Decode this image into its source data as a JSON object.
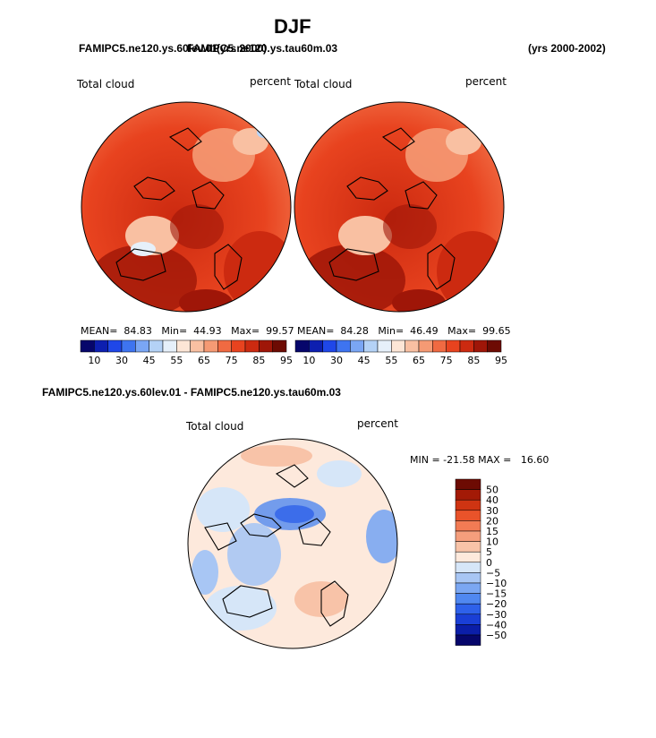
{
  "page_title": "DJF",
  "header": {
    "left_overlap_a": "FAMIPC5.ne120.ys.60lev.01",
    "left_overlap_b": "FAMIPC5.ne120.ys.tau60m.03",
    "years_a": "(yrs 2000)",
    "years_right": "(yrs 2000-2002)"
  },
  "diff_header": "FAMIPC5.ne120.ys.60lev.01 - FAMIPC5.ne120.ys.tau60m.03",
  "colors": {
    "seq": [
      "#06066b",
      "#0d1fb0",
      "#1f47e8",
      "#3e74f0",
      "#7aa6f4",
      "#b4d2f6",
      "#e6f0fa",
      "#fde6d6",
      "#f9c0a2",
      "#f59a74",
      "#f06a42",
      "#e8431f",
      "#cc2a10",
      "#9f1608",
      "#6d0b03"
    ],
    "div": [
      "#06066b",
      "#0b1ea8",
      "#1a3fd6",
      "#2e61ea",
      "#5088f0",
      "#7ba7f2",
      "#a8c6f4",
      "#d6e6f8",
      "#fde9dc",
      "#f8c3a8",
      "#f59e7c",
      "#f27b54",
      "#e9532a",
      "#cf3412",
      "#a31a06",
      "#6d0b03"
    ]
  },
  "chart_data": [
    {
      "type": "heatmap",
      "subtype": "polar-stereographic map",
      "title": "Total cloud",
      "units": "percent",
      "stats": {
        "mean_label": "MEAN=",
        "mean": "84.83",
        "min_label": "Min=",
        "min": "44.93",
        "max_label": "Max=",
        "max": "99.57"
      },
      "colorbar_ticks": [
        "10",
        "30",
        "45",
        "55",
        "65",
        "75",
        "85",
        "95"
      ]
    },
    {
      "type": "heatmap",
      "subtype": "polar-stereographic map",
      "title": "Total cloud",
      "units": "percent",
      "stats": {
        "mean_label": "MEAN=",
        "mean": "84.28",
        "min_label": "Min=",
        "min": "46.49",
        "max_label": "Max=",
        "max": "99.65"
      },
      "colorbar_ticks": [
        "10",
        "30",
        "45",
        "55",
        "65",
        "75",
        "85",
        "95"
      ]
    },
    {
      "type": "heatmap",
      "subtype": "polar-stereographic difference map",
      "title": "Total cloud",
      "units": "percent",
      "stats_text": "MIN = -21.58 MAX =   16.60",
      "colorbar_ticks": [
        "50",
        "40",
        "30",
        "20",
        "15",
        "10",
        "5",
        "0",
        "−5",
        "−10",
        "−15",
        "−20",
        "−30",
        "−40",
        "−50"
      ]
    }
  ]
}
